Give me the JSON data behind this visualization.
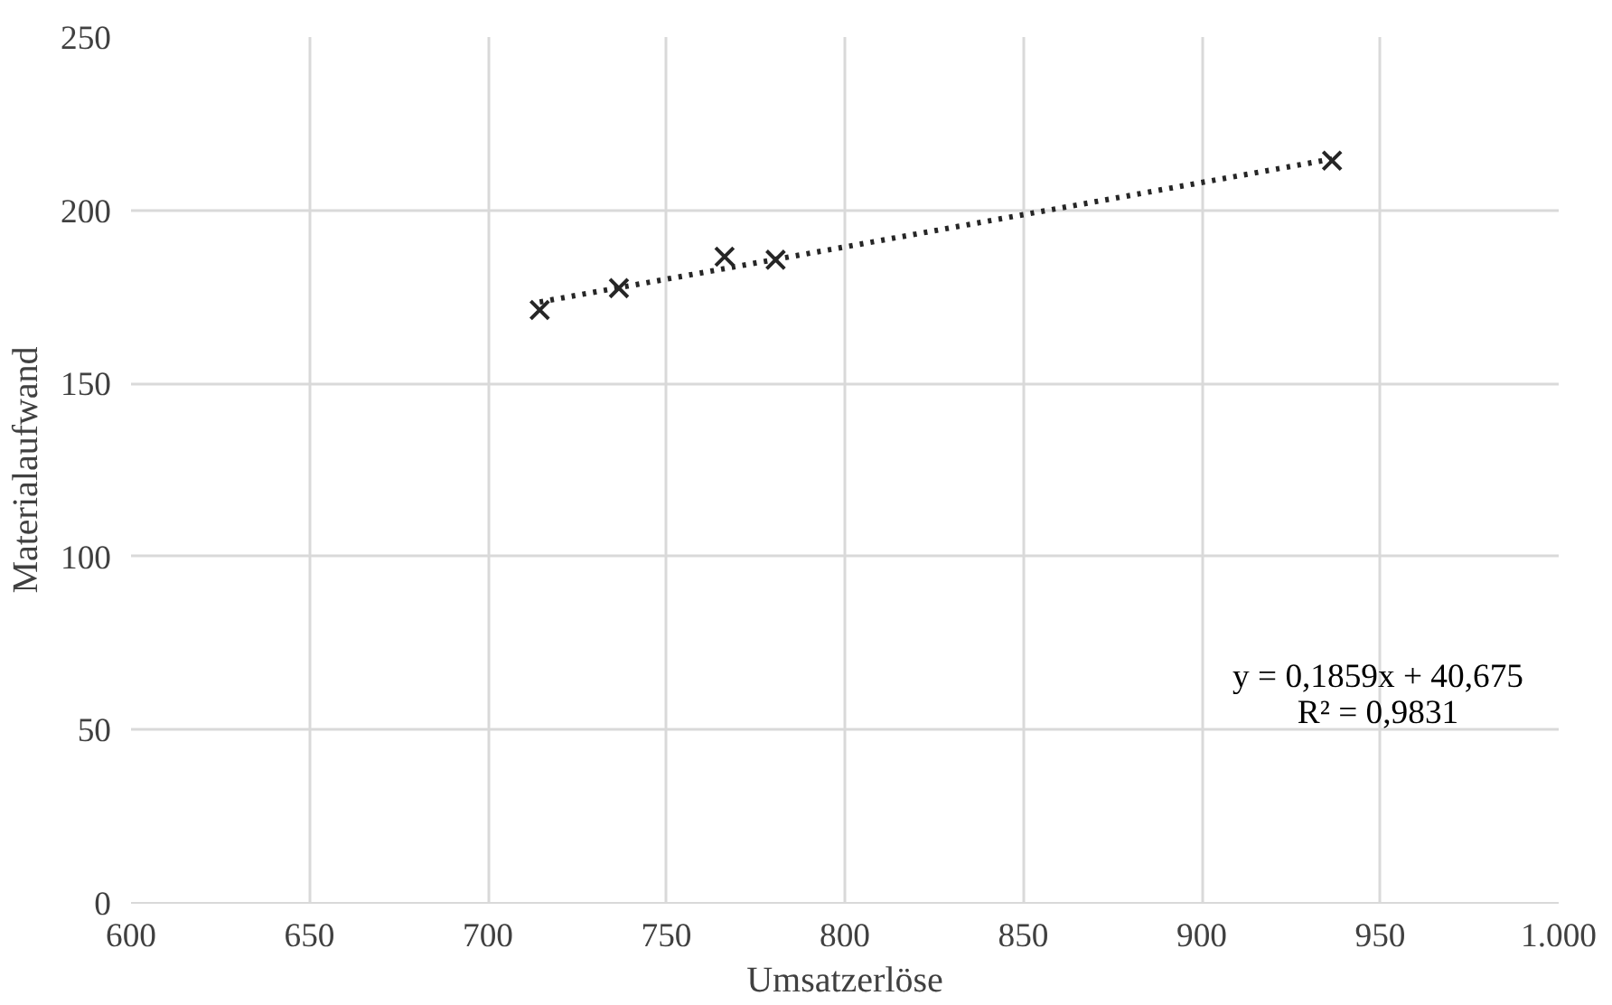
{
  "chart_data": {
    "type": "scatter",
    "xlabel": "Umsatzerlöse",
    "ylabel": "Materialaufwand",
    "xlim": [
      600,
      1000
    ],
    "xticks": [
      600,
      650,
      700,
      750,
      800,
      850,
      900,
      950,
      {
        "value": 1000,
        "label": "1.000"
      }
    ],
    "ylim": [
      0,
      250
    ],
    "yticks": [
      0,
      50,
      100,
      150,
      200,
      250
    ],
    "grid": true,
    "series": [
      {
        "marker": "cross",
        "color": "#262626",
        "x": [
          714.5,
          736.7,
          766.3,
          780.6,
          936.5
        ],
        "values": [
          171.2,
          177.5,
          186.6,
          185.7,
          214.3
        ]
      },
      {
        "type": "line",
        "line_style": "dotted",
        "color": "#262626",
        "x": [
          714.5,
          936.5
        ],
        "values": [
          173.5,
          214.8
        ]
      }
    ],
    "annotations": [
      "y = 0,1859x + 40,675\nR² = 0,9831"
    ]
  }
}
